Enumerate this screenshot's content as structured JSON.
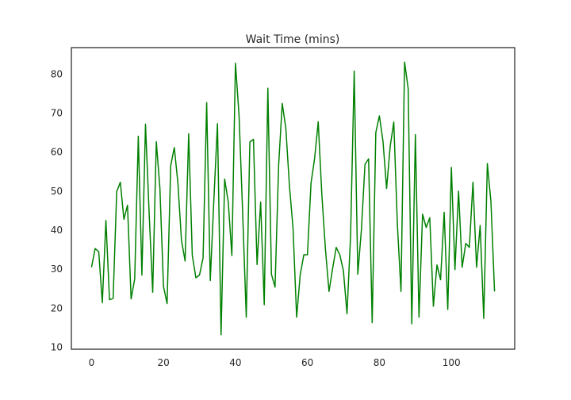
{
  "chart_data": {
    "type": "line",
    "title": "Wait Time (mins)",
    "xlabel": "",
    "ylabel": "",
    "xlim": [
      -5.6,
      117.6
    ],
    "ylim": [
      9.5,
      86.8
    ],
    "xticks": [
      0,
      20,
      40,
      60,
      80,
      100
    ],
    "yticks": [
      10,
      20,
      30,
      40,
      50,
      60,
      70,
      80
    ],
    "grid": false,
    "legend": "none",
    "series": [
      {
        "color": "#008000",
        "x": [
          0,
          1,
          2,
          3,
          4,
          5,
          6,
          7,
          8,
          9,
          10,
          11,
          12,
          13,
          14,
          15,
          16,
          17,
          18,
          19,
          20,
          21,
          22,
          23,
          24,
          25,
          26,
          27,
          28,
          29,
          30,
          31,
          32,
          33,
          34,
          35,
          36,
          37,
          38,
          39,
          40,
          41,
          42,
          43,
          44,
          45,
          46,
          47,
          48,
          49,
          50,
          51,
          52,
          53,
          54,
          55,
          56,
          57,
          58,
          59,
          60,
          61,
          62,
          63,
          64,
          65,
          66,
          67,
          68,
          69,
          70,
          71,
          72,
          73,
          74,
          75,
          76,
          77,
          78,
          79,
          80,
          81,
          82,
          83,
          84,
          85,
          86,
          87,
          88,
          89,
          90,
          91,
          92,
          93,
          94,
          95,
          96,
          97,
          98,
          99,
          100,
          101,
          102,
          103,
          104,
          105,
          106,
          107,
          108,
          109,
          110,
          111,
          112
        ],
        "y": [
          30.5,
          35.3,
          34.5,
          21.4,
          42.5,
          22.2,
          22.5,
          49.9,
          52.3,
          42.8,
          46.4,
          22.4,
          27.5,
          64.1,
          28.5,
          67.2,
          44.6,
          24.1,
          62.7,
          50.8,
          25.6,
          21.2,
          56.5,
          61.2,
          52.1,
          37.4,
          32.1,
          64.7,
          33.6,
          27.8,
          28.5,
          32.9,
          72.7,
          27.1,
          47.8,
          67.3,
          13.2,
          53.1,
          47.2,
          33.5,
          82.8,
          69.4,
          44.5,
          17.7,
          62.6,
          63.3,
          31.2,
          47.2,
          20.9,
          76.4,
          28.7,
          25.4,
          56.6,
          72.5,
          66.1,
          51.4,
          40.5,
          17.7,
          28.6,
          33.7,
          33.7,
          52.1,
          58.4,
          67.8,
          49.2,
          35.2,
          24.3,
          30.2,
          35.6,
          33.7,
          29.6,
          18.6,
          38.8,
          80.8,
          28.7,
          40.1,
          56.9,
          58.3,
          16.3,
          65.0,
          69.3,
          62.8,
          50.7,
          61.5,
          67.7,
          41.4,
          24.3,
          83.1,
          76.3,
          16.0,
          64.5,
          17.7,
          44.1,
          40.7,
          43.2,
          20.5,
          31.1,
          27.3,
          44.6,
          19.7,
          56.1,
          29.9,
          50.0,
          30.5,
          36.6,
          35.6,
          52.3,
          30.5,
          41.2,
          17.4,
          57.1,
          47.3,
          24.3
        ]
      }
    ]
  }
}
